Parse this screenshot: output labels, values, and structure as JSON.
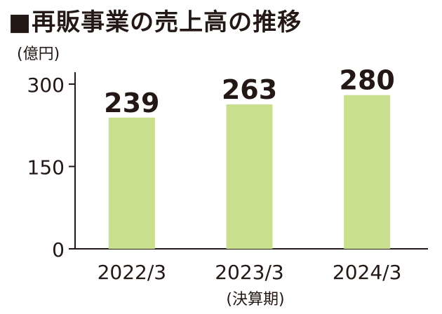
{
  "title": "■再販事業の売上高の推移",
  "chart_data": {
    "type": "bar",
    "title": "■再販事業の売上高の推移",
    "unit_label": "(億円)",
    "xlabel": "(決算期)",
    "ylabel": "",
    "categories": [
      "2022/3",
      "2023/3",
      "2024/3"
    ],
    "values": [
      239,
      263,
      280
    ],
    "ylim": [
      0,
      300
    ],
    "yticks": [
      0,
      150,
      300
    ],
    "grid": false,
    "legend": "none",
    "bar_color": "#c8df8e",
    "axis_color": "#231815"
  }
}
